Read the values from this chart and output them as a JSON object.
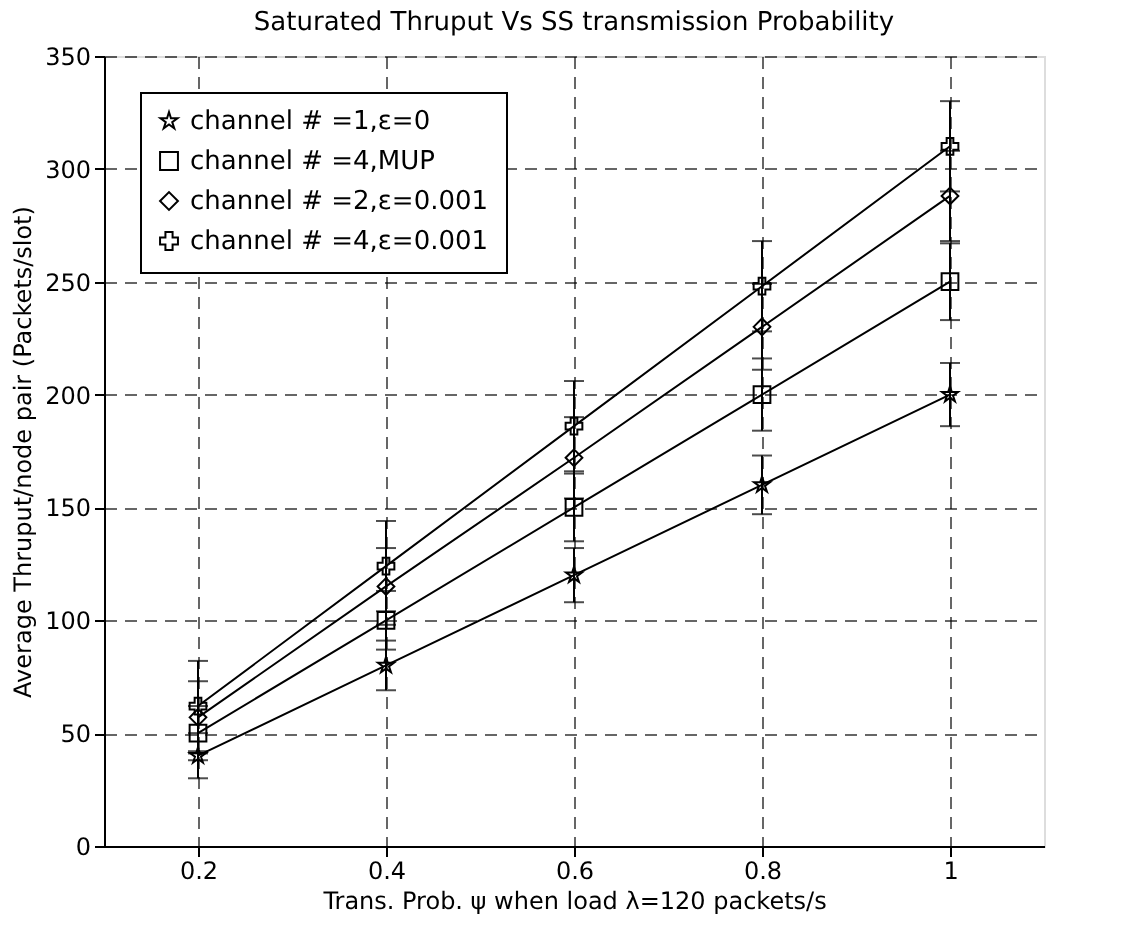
{
  "chart_data": {
    "type": "line",
    "title": "Saturated Thruput Vs SS transmission Probability",
    "xlabel": "Trans. Prob. ψ when load λ=120 packets/s",
    "ylabel": "Average Thruput/node pair (Packets/slot)",
    "x": [
      0.2,
      0.4,
      0.6,
      0.8,
      1
    ],
    "series": [
      {
        "name": "channel # =1,ε=0",
        "color": "#000000",
        "marker": "star",
        "values": [
          40,
          80,
          120,
          160,
          200
        ],
        "errors": [
          10,
          11,
          12,
          13,
          14
        ]
      },
      {
        "name": "channel # =4,MUP",
        "color": "#000000",
        "marker": "square",
        "values": [
          50,
          100,
          150,
          200,
          250
        ],
        "errors": [
          12,
          13,
          15,
          16,
          17
        ]
      },
      {
        "name": "channel # =2,ε=0.001",
        "color": "#000000",
        "marker": "diamond",
        "values": [
          57,
          115,
          172,
          230,
          288
        ],
        "errors": [
          16,
          17,
          18,
          19,
          20
        ]
      },
      {
        "name": "channel # =4,ε=0.001",
        "color": "#000000",
        "marker": "cross",
        "values": [
          62,
          124,
          186,
          248,
          310
        ],
        "errors": [
          20,
          20,
          20,
          20,
          20
        ]
      }
    ],
    "xlim": [
      0.1,
      1.1
    ],
    "xticks": [
      0.2,
      0.4,
      0.6,
      0.8,
      {
        "value": 1,
        "label": "1"
      }
    ],
    "ylim": [
      0,
      350
    ],
    "yticks": [
      0,
      50,
      100,
      150,
      200,
      250,
      300,
      350
    ],
    "grid": true,
    "legend": "top left",
    "line_style": "solid"
  }
}
